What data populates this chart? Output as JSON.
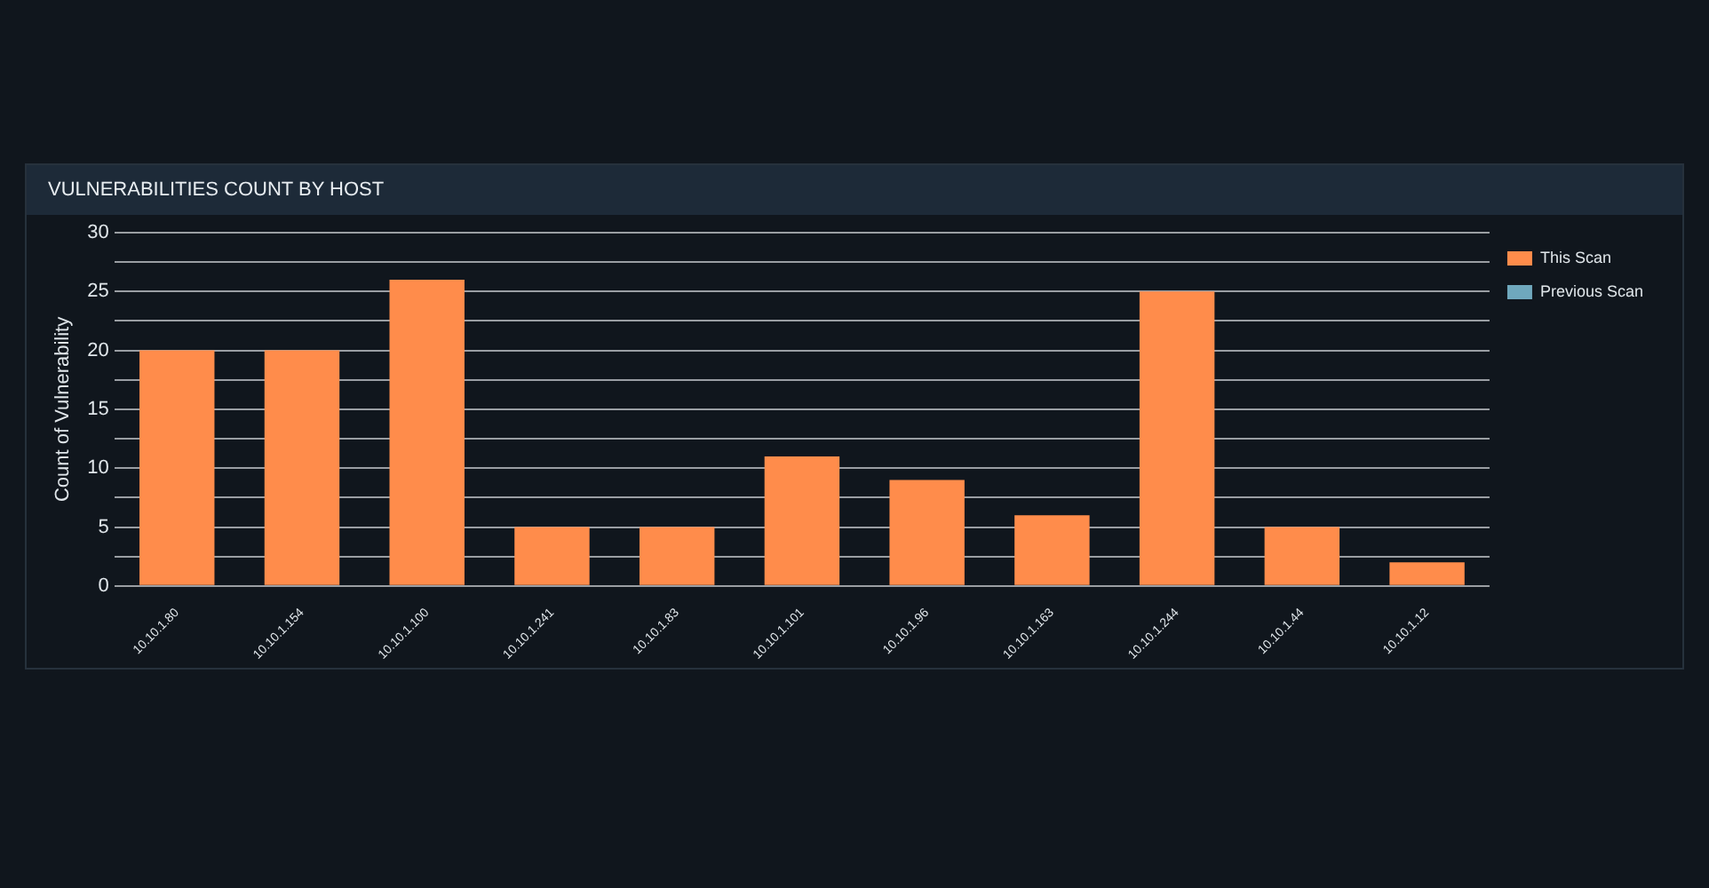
{
  "chart_data": {
    "type": "bar",
    "title": "VULNERABILITIES COUNT BY HOST",
    "ylabel": "Count of Vulnerability",
    "categories": [
      "10.10.1.80",
      "10.10.1.154",
      "10.10.1.100",
      "10.10.1.241",
      "10.10.1.83",
      "10.10.1.101",
      "10.10.1.96",
      "10.10.1.163",
      "10.10.1.244",
      "10.10.1.44",
      "10.10.1.12"
    ],
    "series": [
      {
        "name": "This Scan",
        "color": "#ff8c4b",
        "values": [
          20,
          20,
          26,
          5,
          5,
          11,
          9,
          6,
          25,
          5,
          2
        ]
      },
      {
        "name": "Previous Scan",
        "color": "#6fa8bd",
        "values": [
          null,
          null,
          null,
          null,
          null,
          null,
          null,
          null,
          null,
          null,
          null
        ]
      }
    ],
    "ylim": [
      0,
      30
    ],
    "yticks": [
      0,
      {
        "value": 2.5,
        "label": null
      },
      5,
      {
        "value": 7.5,
        "label": null
      },
      10,
      {
        "value": 12.5,
        "label": null
      },
      15,
      {
        "value": 17.5,
        "label": null
      },
      20,
      {
        "value": 22.5,
        "label": null
      },
      25,
      {
        "value": 27.5,
        "label": null
      },
      30
    ],
    "grid": "y",
    "legend": "top right"
  }
}
